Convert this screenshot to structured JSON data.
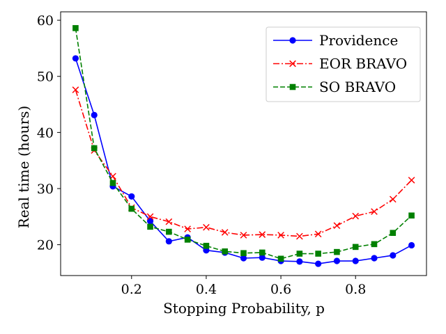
{
  "chart_data": {
    "type": "line",
    "title": "",
    "xlabel": "Stopping Probability, p",
    "ylabel": "Real time (hours)",
    "xlim": [
      0.01,
      0.99
    ],
    "ylim": [
      14.5,
      61.5
    ],
    "xticks": [
      0.2,
      0.4,
      0.6,
      0.8
    ],
    "xtick_labels": [
      "0.2",
      "0.4",
      "0.6",
      "0.8"
    ],
    "yticks": [
      20,
      30,
      40,
      50,
      60
    ],
    "ytick_labels": [
      "20",
      "30",
      "40",
      "50",
      "60"
    ],
    "grid": false,
    "legend_position": "top-right",
    "x": [
      0.05,
      0.1,
      0.15,
      0.2,
      0.25,
      0.3,
      0.35,
      0.4,
      0.45,
      0.5,
      0.55,
      0.6,
      0.65,
      0.7,
      0.75,
      0.8,
      0.85,
      0.9,
      0.95
    ],
    "series": [
      {
        "name": "Providence",
        "color": "#0000ff",
        "line_style": "solid",
        "marker": "circle",
        "values": [
          53.2,
          43.1,
          30.4,
          28.6,
          24.2,
          20.6,
          21.3,
          19.0,
          18.6,
          17.6,
          17.7,
          17.1,
          17.0,
          16.6,
          17.1,
          17.1,
          17.6,
          18.1,
          19.9
        ]
      },
      {
        "name": "EOR BRAVO",
        "color": "#ff0000",
        "line_style": "dashdot",
        "marker": "x",
        "values": [
          47.6,
          36.8,
          32.2,
          26.6,
          25.0,
          24.1,
          22.8,
          23.1,
          22.2,
          21.7,
          21.8,
          21.7,
          21.5,
          21.9,
          23.4,
          25.1,
          25.9,
          28.1,
          31.5
        ]
      },
      {
        "name": "SO BRAVO",
        "color": "#008000",
        "line_style": "dashed",
        "marker": "square",
        "values": [
          58.6,
          37.2,
          31.0,
          26.4,
          23.2,
          22.3,
          20.9,
          19.8,
          18.8,
          18.5,
          18.6,
          17.5,
          18.4,
          18.4,
          18.7,
          19.6,
          20.1,
          22.1,
          25.2
        ]
      }
    ]
  }
}
